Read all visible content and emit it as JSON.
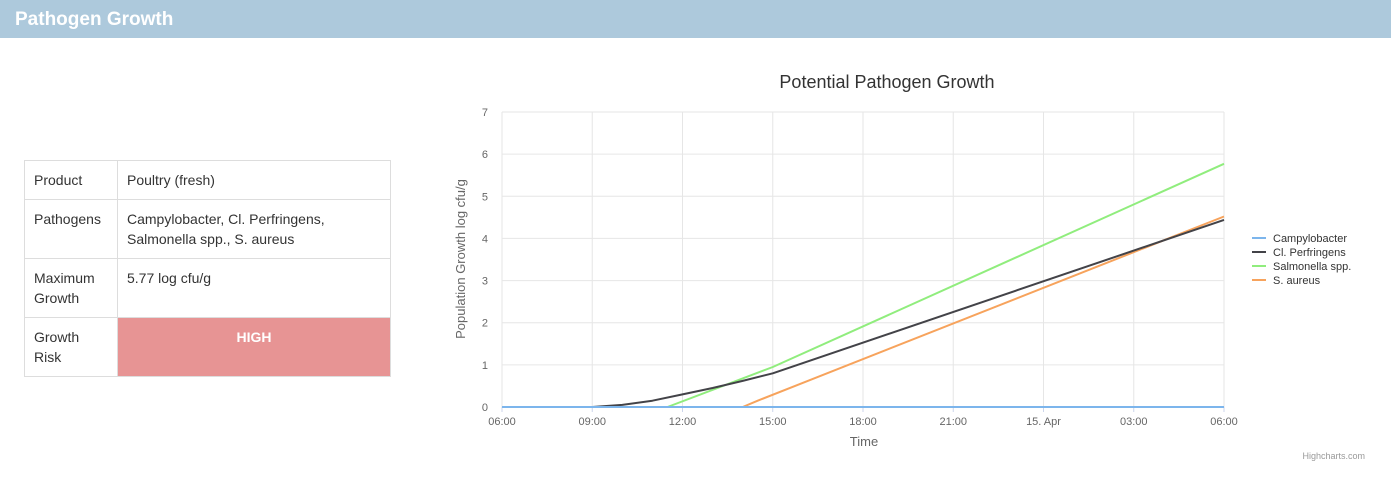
{
  "header": {
    "title": "Pathogen Growth"
  },
  "info_table": [
    {
      "label": "Product",
      "value": "Poultry (fresh)"
    },
    {
      "label": "Pathogens",
      "value": "Campylobacter, Cl. Perfringens, Salmonella spp., S. aureus"
    },
    {
      "label": "Maximum Growth",
      "value": "5.77 log cfu/g"
    },
    {
      "label": "Growth Risk",
      "value": "HIGH"
    }
  ],
  "colors": {
    "header": "#adc9dc",
    "risk_high": "#e79494"
  },
  "credits": "Highcharts.com",
  "chart_data": {
    "type": "line",
    "title": "Potential Pathogen Growth",
    "xlabel": "Time",
    "ylabel": "Population Growth log cfu/g",
    "xlim": [
      "14 Apr 06:00",
      "15 Apr 06:00"
    ],
    "ylim": [
      0,
      7
    ],
    "x_ticks": [
      "06:00",
      "09:00",
      "12:00",
      "15:00",
      "18:00",
      "21:00",
      "15. Apr",
      "03:00",
      "06:00"
    ],
    "y_ticks": [
      "0",
      "1",
      "2",
      "3",
      "4",
      "5",
      "6",
      "7"
    ],
    "grid": true,
    "legend_position": "right",
    "series": [
      {
        "name": "Campylobacter",
        "color": "#7cb5ec",
        "x": [
          "14 Apr 06:00",
          "15 Apr 06:00"
        ],
        "values": [
          0,
          0
        ]
      },
      {
        "name": "Cl. Perfringens",
        "color": "#434348",
        "x": [
          "14 Apr 06:00",
          "14 Apr 09:00",
          "14 Apr 10:00",
          "14 Apr 11:00",
          "14 Apr 12:00",
          "14 Apr 13:00",
          "14 Apr 14:00",
          "14 Apr 15:00",
          "15 Apr 06:00"
        ],
        "values": [
          0,
          0,
          0.05,
          0.15,
          0.3,
          0.45,
          0.62,
          0.8,
          4.44
        ]
      },
      {
        "name": "Salmonella spp.",
        "color": "#90ed7d",
        "x": [
          "14 Apr 06:00",
          "14 Apr 11:30",
          "14 Apr 15:00",
          "15 Apr 06:00"
        ],
        "values": [
          0,
          0,
          0.95,
          5.77
        ]
      },
      {
        "name": "S. aureus",
        "color": "#f7a35c",
        "x": [
          "14 Apr 06:00",
          "14 Apr 14:00",
          "14 Apr 14:30",
          "15 Apr 06:00"
        ],
        "values": [
          0,
          0,
          0.15,
          4.52
        ]
      }
    ]
  }
}
